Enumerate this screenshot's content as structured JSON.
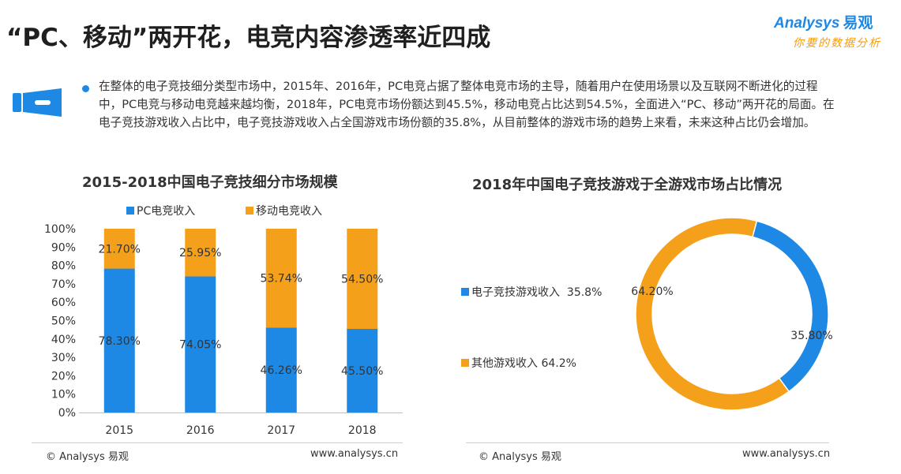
{
  "page": {
    "title": "“PC、移动”两开花，电竞内容渗透率近四成",
    "summary": "在整体的电子竞技细分类型市场中，2015年、2016年，PC电竞占据了整体电竞市场的主导，随着用户在使用场景以及互联网不断进化的过程中，PC电竞与移动电竞越来越均衡，2018年，PC电竞市场份额达到45.5%，移动电竞占比达到54.5%，全面进入“PC、移动”两开花的局面。在电子竞技游戏收入占比中，电子竞技游戏收入占全国游戏市场份额的35.8%，从目前整体的游戏市场的趋势上来看，未来这种占比仍会增加。"
  },
  "logo": {
    "brand": "Analysys",
    "brand_cn": "易观",
    "slogan": "你要的数据分析"
  },
  "watermark": {
    "brand": "Analysys 易观",
    "slogan": "你要的数据分析"
  },
  "colors": {
    "blue": "#1e88e5",
    "orange": "#f5a01a",
    "text": "#333333"
  },
  "chart_data": [
    {
      "type": "bar",
      "stacked": true,
      "title": "2015-2018中国电子竞技细分市场规模",
      "categories": [
        "2015",
        "2016",
        "2017",
        "2018"
      ],
      "series": [
        {
          "name": "PC电竞收入",
          "color": "#1e88e5",
          "values": [
            78.3,
            74.05,
            46.26,
            45.5
          ],
          "labels": [
            "78.30%",
            "74.05%",
            "46.26%",
            "45.50%"
          ]
        },
        {
          "name": "移动电竞收入",
          "color": "#f5a01a",
          "values": [
            21.7,
            25.95,
            53.74,
            54.5
          ],
          "labels": [
            "21.70%",
            "25.95%",
            "53.74%",
            "54.50%"
          ]
        }
      ],
      "ylim": [
        0,
        100
      ],
      "yticks": [
        "0%",
        "10%",
        "20%",
        "30%",
        "40%",
        "50%",
        "60%",
        "70%",
        "80%",
        "90%",
        "100%"
      ],
      "legend": "top",
      "grid": false
    },
    {
      "type": "pie",
      "donut": true,
      "title": "2018年中国电子竞技游戏于全游戏市场占比情况",
      "slices": [
        {
          "name": "电子竞技游戏收入",
          "value": 35.8,
          "color": "#1e88e5",
          "legend_value": "35.8%",
          "label": "35.80%"
        },
        {
          "name": "其他游戏收入",
          "value": 64.2,
          "color": "#f5a01a",
          "legend_value": "64.2%",
          "label": "64.20%"
        }
      ],
      "legend": "left"
    }
  ],
  "footer": {
    "left_copyright": "© Analysys 易观",
    "left_url": "www.analysys.cn",
    "right_copyright": "© Analysys 易观",
    "right_url": "www.analysys.cn"
  }
}
